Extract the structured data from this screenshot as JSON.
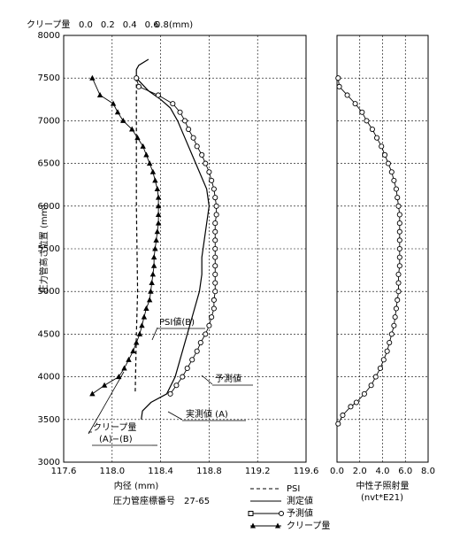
{
  "chart_data": [
    {
      "type": "line",
      "xlabel": "内径 (mm)",
      "subtitle": "圧力管座標番号　27-65",
      "ylabel": "圧力管高さ位置 (mm)",
      "x2label": "クリープ量",
      "xlim": [
        117.6,
        119.6
      ],
      "xticks": [
        117.6,
        {
          "value": 118.0,
          "label": "118.0"
        },
        118.4,
        118.8,
        119.2,
        119.6
      ],
      "x2lim": [
        -0.2,
        2.0
      ],
      "x2ticks": [
        {
          "value": 0,
          "label": "0.0"
        },
        0.2,
        0.4,
        0.6,
        {
          "value": 0.8,
          "label": "0.8(mm)"
        }
      ],
      "ylim": [
        3000,
        8000
      ],
      "yticks": [
        3000,
        3500,
        4000,
        4500,
        5000,
        5500,
        6000,
        6500,
        7000,
        7500,
        8000
      ],
      "grid": true,
      "annotations": [
        "PSI値(B)",
        "予測値",
        "実測値 (A)",
        "クリープ量",
        "(A)−(B)"
      ],
      "series": [
        {
          "name": "PSI",
          "color": "#000000",
          "dash": true,
          "marker": null,
          "y": [
            7500,
            7000,
            6000,
            5000,
            4500,
            3800
          ],
          "values": [
            118.2,
            118.2,
            118.2,
            118.21,
            118.2,
            118.19
          ]
        },
        {
          "name": "測定値",
          "color": "#000000",
          "dash": false,
          "marker": null,
          "y": [
            7720,
            7650,
            7600,
            7500,
            7350,
            7250,
            7150,
            7000,
            6800,
            6600,
            6400,
            6200,
            6000,
            5800,
            5600,
            5400,
            5200,
            5000,
            4800,
            4600,
            4400,
            4200,
            4000,
            3800,
            3700,
            3600,
            3500
          ],
          "values": [
            118.3,
            118.22,
            118.2,
            118.2,
            118.3,
            118.4,
            118.48,
            118.54,
            118.6,
            118.66,
            118.72,
            118.78,
            118.8,
            118.78,
            118.76,
            118.74,
            118.74,
            118.72,
            118.68,
            118.64,
            118.6,
            118.56,
            118.52,
            118.45,
            118.32,
            118.25,
            118.24
          ]
        },
        {
          "name": "予測値",
          "color": "#000000",
          "dash": false,
          "marker": "circle",
          "y": [
            7500,
            7400,
            7300,
            7200,
            7100,
            7000,
            6900,
            6800,
            6700,
            6600,
            6500,
            6400,
            6300,
            6200,
            6100,
            6000,
            5900,
            5800,
            5700,
            5600,
            5500,
            5400,
            5300,
            5200,
            5100,
            5000,
            4900,
            4800,
            4700,
            4600,
            4500,
            4400,
            4300,
            4200,
            4100,
            4000,
            3900,
            3800
          ],
          "values": [
            118.2,
            118.22,
            118.38,
            118.5,
            118.56,
            118.6,
            118.63,
            118.67,
            118.7,
            118.74,
            118.77,
            118.8,
            118.82,
            118.84,
            118.85,
            118.86,
            118.86,
            118.85,
            118.85,
            118.85,
            118.85,
            118.85,
            118.85,
            118.85,
            118.85,
            118.85,
            118.84,
            118.84,
            118.82,
            118.8,
            118.77,
            118.73,
            118.7,
            118.66,
            118.62,
            118.58,
            118.53,
            118.48
          ]
        },
        {
          "name": "クリープ量",
          "color": "#000000",
          "dash": false,
          "marker": "triangle",
          "axis": "x2",
          "y": [
            7500,
            7300,
            7200,
            7100,
            7000,
            6900,
            6800,
            6700,
            6600,
            6500,
            6400,
            6300,
            6200,
            6100,
            6000,
            5900,
            5800,
            5700,
            5600,
            5500,
            5400,
            5300,
            5200,
            5100,
            5000,
            4900,
            4800,
            4700,
            4600,
            4500,
            4400,
            4300,
            4200,
            4100,
            4000,
            3900,
            3800
          ],
          "values": [
            0.06,
            0.13,
            0.25,
            0.29,
            0.34,
            0.42,
            0.47,
            0.52,
            0.55,
            0.58,
            0.61,
            0.63,
            0.65,
            0.66,
            0.66,
            0.66,
            0.66,
            0.65,
            0.64,
            0.63,
            0.62,
            0.62,
            0.61,
            0.6,
            0.59,
            0.58,
            0.55,
            0.53,
            0.51,
            0.49,
            0.46,
            0.43,
            0.39,
            0.35,
            0.3,
            0.17,
            0.06
          ]
        }
      ]
    },
    {
      "type": "line",
      "xlabel": "中性子照射量",
      "xunit": "(nvt*E21)",
      "xlim": [
        0,
        8
      ],
      "xticks": [
        {
          "value": 0,
          "label": "0.0"
        },
        {
          "value": 2,
          "label": "2.0"
        },
        {
          "value": 4,
          "label": "4.0"
        },
        {
          "value": 6,
          "label": "6.0"
        },
        {
          "value": 8,
          "label": "8.0"
        }
      ],
      "grid": true,
      "series": [
        {
          "color": "#000000",
          "marker": "circle",
          "y": [
            7500,
            7400,
            7300,
            7200,
            7100,
            7000,
            6900,
            6800,
            6700,
            6600,
            6500,
            6400,
            6300,
            6200,
            6100,
            6000,
            5900,
            5800,
            5700,
            5600,
            5500,
            5400,
            5300,
            5200,
            5100,
            5000,
            4900,
            4800,
            4700,
            4600,
            4500,
            4400,
            4300,
            4200,
            4100,
            4000,
            3900,
            3800,
            3700,
            3650,
            3550,
            3450
          ],
          "values": [
            0.1,
            0.2,
            0.9,
            1.6,
            2.2,
            2.6,
            3.1,
            3.5,
            3.9,
            4.2,
            4.5,
            4.8,
            5.0,
            5.2,
            5.3,
            5.4,
            5.5,
            5.5,
            5.5,
            5.5,
            5.5,
            5.5,
            5.5,
            5.4,
            5.4,
            5.4,
            5.3,
            5.2,
            5.1,
            5.0,
            4.8,
            4.6,
            4.4,
            4.1,
            3.8,
            3.4,
            3.0,
            2.4,
            1.7,
            1.2,
            0.5,
            0.1
          ]
        }
      ]
    }
  ]
}
